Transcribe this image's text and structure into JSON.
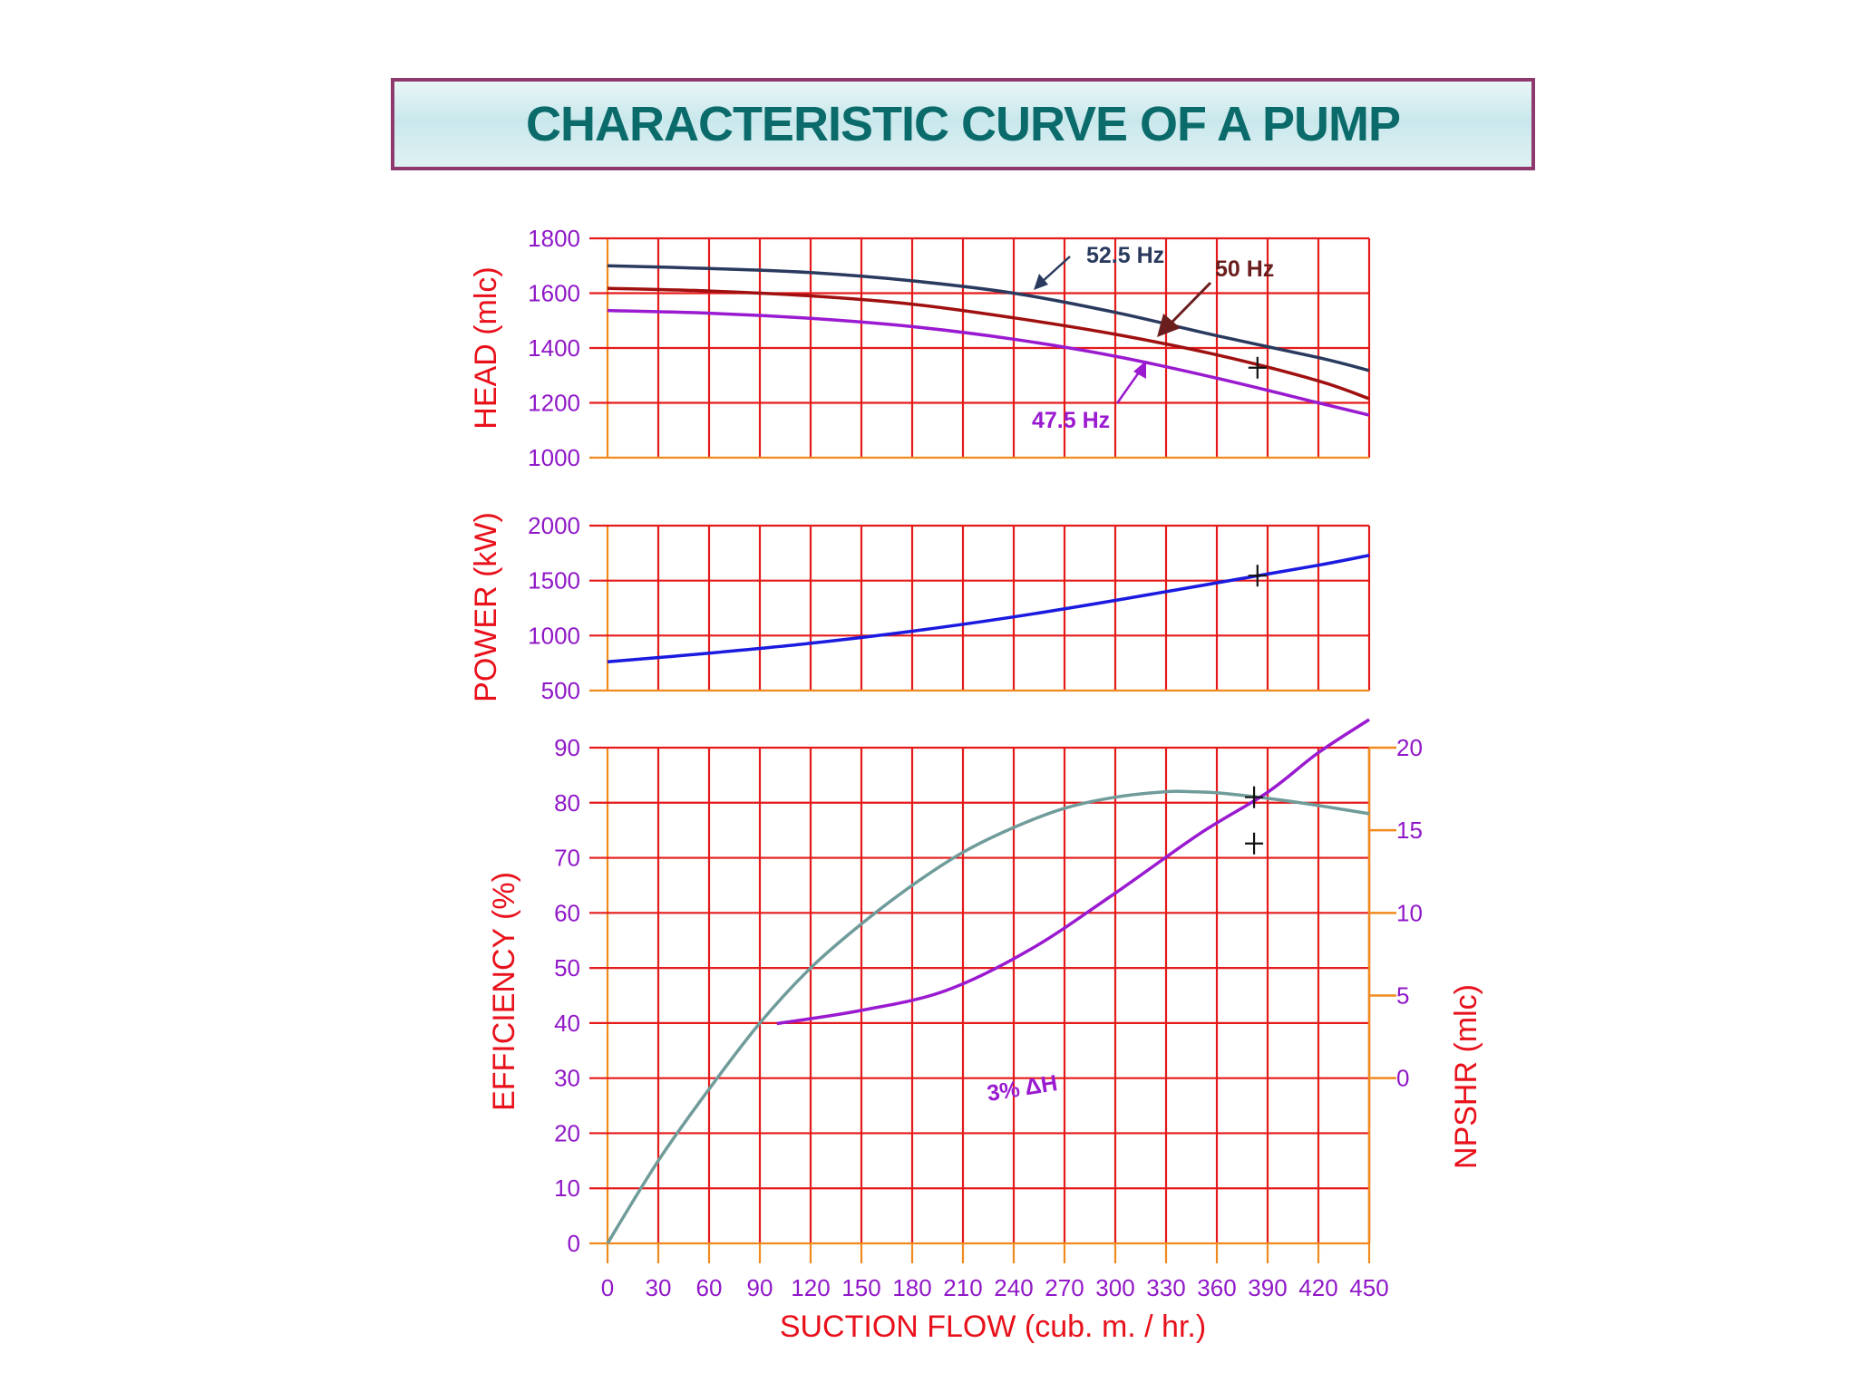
{
  "page": {
    "title": "CHARACTERISTIC CURVE OF A PUMP"
  },
  "chart_data": [
    {
      "type": "line",
      "id": "head",
      "ylabel": "HEAD (mlc)",
      "ylim": [
        1000,
        1800
      ],
      "yticks": [
        "1000",
        "1200",
        "1400",
        "1600",
        "1800"
      ],
      "xlim": [
        0,
        450
      ],
      "grid": true,
      "series": [
        {
          "name": "52.5 Hz",
          "color": "#2a3a5e",
          "x": [
            0,
            60,
            120,
            180,
            240,
            300,
            360,
            420,
            450
          ],
          "y": [
            1700,
            1690,
            1675,
            1645,
            1600,
            1530,
            1445,
            1365,
            1318
          ]
        },
        {
          "name": "50 Hz",
          "color": "#a01010",
          "x": [
            0,
            60,
            120,
            180,
            240,
            300,
            360,
            420,
            450
          ],
          "y": [
            1618,
            1608,
            1590,
            1560,
            1510,
            1450,
            1375,
            1280,
            1215
          ]
        },
        {
          "name": "47.5 Hz",
          "color": "#9a1ad0",
          "x": [
            0,
            60,
            120,
            180,
            240,
            300,
            360,
            420,
            450
          ],
          "y": [
            1537,
            1527,
            1508,
            1478,
            1432,
            1370,
            1290,
            1200,
            1155
          ]
        }
      ],
      "annotations": [
        {
          "text": "52.5 Hz",
          "color": "#2a3a5e"
        },
        {
          "text": "50 Hz",
          "color": "#6b1e1e"
        },
        {
          "text": "47.5 Hz",
          "color": "#9a1ad0"
        }
      ],
      "markers": [
        {
          "x": 384,
          "y": 1328
        }
      ]
    },
    {
      "type": "line",
      "id": "power",
      "ylabel": "POWER (kW)",
      "ylim": [
        500,
        2000
      ],
      "yticks": [
        "500",
        "1000",
        "1500",
        "2000"
      ],
      "xlim": [
        0,
        450
      ],
      "grid": true,
      "series": [
        {
          "color": "#1a1ae0",
          "x": [
            0,
            60,
            120,
            180,
            240,
            300,
            360,
            420,
            450
          ],
          "y": [
            762,
            840,
            930,
            1040,
            1170,
            1320,
            1480,
            1640,
            1730
          ]
        }
      ],
      "markers": [
        {
          "x": 384,
          "y": 1545
        }
      ]
    },
    {
      "type": "line",
      "id": "efficiency-npshr",
      "ylabel": "EFFICIENCY (%)",
      "ylabel_right": "NPSHR (mlc)",
      "ylim": [
        0,
        90
      ],
      "yticks": [
        "0",
        "10",
        "20",
        "30",
        "40",
        "50",
        "60",
        "70",
        "80",
        "90"
      ],
      "ylim_right": [
        -10,
        20
      ],
      "yticks_right": [
        "0",
        "5",
        "10",
        "15",
        "20"
      ],
      "xlim": [
        0,
        450
      ],
      "xticks": [
        "0",
        "30",
        "60",
        "90",
        "120",
        "150",
        "180",
        "210",
        "240",
        "270",
        "300",
        "330",
        "360",
        "390",
        "420",
        "450"
      ],
      "xlabel": "SUCTION FLOW (cub. m. / hr.)",
      "grid": true,
      "series": [
        {
          "axis": "left",
          "color": "#6f9c9a",
          "x": [
            0,
            30,
            60,
            90,
            120,
            150,
            180,
            210,
            240,
            270,
            300,
            330,
            345,
            360,
            390,
            420,
            450
          ],
          "y": [
            0,
            15,
            28,
            40,
            50,
            58,
            65,
            71,
            75.5,
            79,
            81,
            82,
            82,
            81.8,
            80.8,
            79.5,
            78
          ]
        },
        {
          "axis": "right",
          "color": "#9a1ad0",
          "x": [
            100,
            150,
            200,
            250,
            300,
            350,
            390,
            420,
            450
          ],
          "y": [
            3.3,
            4.1,
            5.3,
            7.8,
            11.2,
            14.8,
            17.3,
            19.7,
            21.7
          ]
        }
      ],
      "annotations": [
        {
          "text": "3% ΔH",
          "color": "#9a1ad0"
        }
      ],
      "markers": [
        {
          "x": 382,
          "y": 81,
          "axis": "left"
        },
        {
          "x": 382,
          "y": 14.2,
          "axis": "right"
        }
      ]
    }
  ]
}
